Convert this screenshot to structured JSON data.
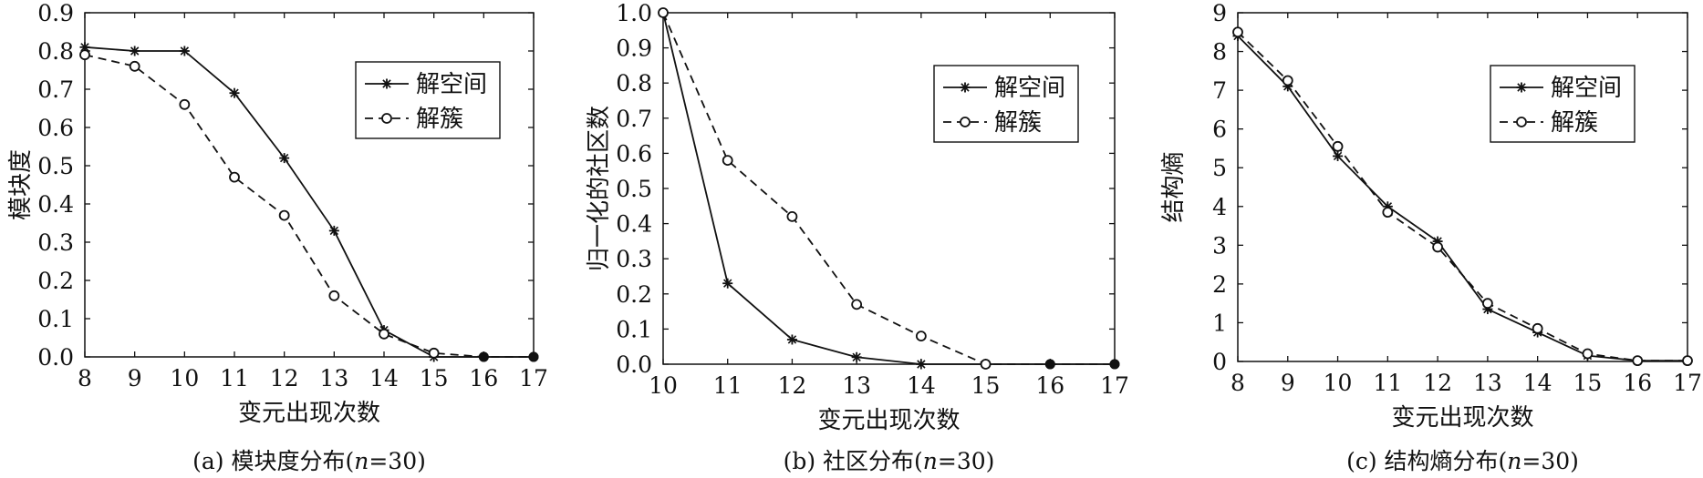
{
  "chart_data": [
    {
      "type": "line",
      "caption": "(a) 模块度分布(n=30)",
      "caption_prefix": "(a) 模块度分布(",
      "caption_italic": "n",
      "caption_suffix": "=30)",
      "xlabel": "变元出现次数",
      "ylabel": "模块度",
      "xlim": [
        8,
        17
      ],
      "ylim": [
        0,
        0.9
      ],
      "x_ticks": [
        8,
        9,
        10,
        11,
        12,
        13,
        14,
        15,
        16,
        17
      ],
      "y_ticks": [
        0.0,
        0.1,
        0.2,
        0.3,
        0.4,
        0.5,
        0.6,
        0.7,
        0.8,
        0.9
      ],
      "y_tick_labels": [
        "0.0",
        "0.1",
        "0.2",
        "0.3",
        "0.4",
        "0.5",
        "0.6",
        "0.7",
        "0.8",
        "0.9"
      ],
      "legend_position": "upper-right",
      "x": [
        8,
        9,
        10,
        11,
        12,
        13,
        14,
        15,
        16,
        17
      ],
      "series": [
        {
          "name": "解空间",
          "marker": "star",
          "line": "solid",
          "values": [
            0.81,
            0.8,
            0.8,
            0.69,
            0.52,
            0.33,
            0.07,
            0.0,
            0.0,
            0.0
          ]
        },
        {
          "name": "解簇",
          "marker": "circle",
          "line": "dashed",
          "values": [
            0.79,
            0.76,
            0.66,
            0.47,
            0.37,
            0.16,
            0.06,
            0.01,
            0.0,
            0.0
          ]
        }
      ]
    },
    {
      "type": "line",
      "caption": "(b) 社区分布(n=30)",
      "caption_prefix": "(b) 社区分布(",
      "caption_italic": "n",
      "caption_suffix": "=30)",
      "xlabel": "变元出现次数",
      "ylabel": "归一化的社区数",
      "xlim": [
        10,
        17
      ],
      "ylim": [
        0,
        1.0
      ],
      "x_ticks": [
        10,
        11,
        12,
        13,
        14,
        15,
        16,
        17
      ],
      "y_ticks": [
        0.0,
        0.1,
        0.2,
        0.3,
        0.4,
        0.5,
        0.6,
        0.7,
        0.8,
        0.9,
        1.0
      ],
      "y_tick_labels": [
        "0.0",
        "0.1",
        "0.2",
        "0.3",
        "0.4",
        "0.5",
        "0.6",
        "0.7",
        "0.8",
        "0.9",
        "1.0"
      ],
      "legend_position": "upper-right",
      "x": [
        10,
        11,
        12,
        13,
        14,
        15,
        16,
        17
      ],
      "series": [
        {
          "name": "解空间",
          "marker": "star",
          "line": "solid",
          "values": [
            1.0,
            0.23,
            0.07,
            0.02,
            0.0,
            0.0,
            0.0,
            0.0
          ]
        },
        {
          "name": "解簇",
          "marker": "circle",
          "line": "dashed",
          "values": [
            1.0,
            0.58,
            0.42,
            0.17,
            0.08,
            0.0,
            0.0,
            0.0
          ]
        }
      ]
    },
    {
      "type": "line",
      "caption": "(c) 结构熵分布(n=30)",
      "caption_prefix": "(c) 结构熵分布(",
      "caption_italic": "n",
      "caption_suffix": "=30)",
      "xlabel": "变元出现次数",
      "ylabel": "结构熵",
      "xlim": [
        8,
        17
      ],
      "ylim": [
        0,
        9
      ],
      "x_ticks": [
        8,
        9,
        10,
        11,
        12,
        13,
        14,
        15,
        16,
        17
      ],
      "y_ticks": [
        0,
        1,
        2,
        3,
        4,
        5,
        6,
        7,
        8,
        9
      ],
      "y_tick_labels": [
        "0",
        "1",
        "2",
        "3",
        "4",
        "5",
        "6",
        "7",
        "8",
        "9"
      ],
      "legend_position": "upper-right",
      "x": [
        8,
        9,
        10,
        11,
        12,
        13,
        14,
        15,
        16,
        17
      ],
      "series": [
        {
          "name": "解空间",
          "marker": "star",
          "line": "solid",
          "values": [
            8.4,
            7.1,
            5.3,
            4.0,
            3.1,
            1.35,
            0.75,
            0.15,
            0.02,
            0.02
          ]
        },
        {
          "name": "解簇",
          "marker": "circle",
          "line": "dashed",
          "values": [
            8.5,
            7.25,
            5.55,
            3.85,
            2.95,
            1.5,
            0.85,
            0.2,
            0.02,
            0.02
          ]
        }
      ]
    }
  ]
}
